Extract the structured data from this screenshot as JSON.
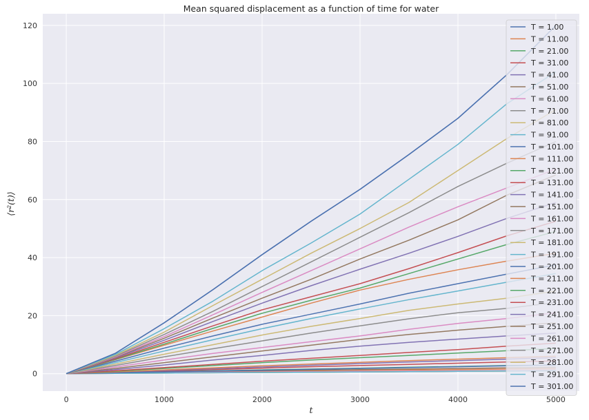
{
  "chart_data": {
    "type": "line",
    "title": "Mean squared displacement as a function of time for water",
    "xlabel": "t",
    "ylabel": "⟨r²(t)⟩",
    "xlim": [
      -240,
      5240
    ],
    "ylim": [
      -6,
      124
    ],
    "x_ticks": [
      0,
      1000,
      2000,
      3000,
      4000,
      5000
    ],
    "y_ticks": [
      0,
      20,
      40,
      60,
      80,
      100,
      120
    ],
    "grid": true,
    "legend_position": "upper-right",
    "series": [
      {
        "name": "T = 1.00",
        "color": "#4c72b0",
        "x": [
          0,
          500,
          1000,
          1500,
          2000,
          2500,
          3000,
          3500,
          4000,
          4500,
          5000
        ],
        "y": [
          0,
          7.0,
          17.5,
          29,
          41,
          52.5,
          63.5,
          75.5,
          88,
          103,
          120
        ]
      },
      {
        "name": "T = 11.00",
        "color": "#dd8452",
        "x": [
          0,
          500,
          1000,
          1500,
          2000,
          2500,
          3000,
          3500,
          4000,
          4500,
          5000
        ],
        "y": [
          0,
          0.2,
          0.4,
          0.6,
          0.8,
          1.0,
          1.2,
          1.3,
          1.4,
          1.6,
          1.7
        ]
      },
      {
        "name": "T = 21.00",
        "color": "#55a868",
        "x": [
          0,
          500,
          1000,
          1500,
          2000,
          2500,
          3000,
          3500,
          4000,
          4500,
          5000
        ],
        "y": [
          0,
          0.3,
          0.7,
          1.0,
          1.3,
          1.6,
          1.9,
          2.2,
          2.5,
          2.8,
          3.0
        ]
      },
      {
        "name": "T = 31.00",
        "color": "#c44e52",
        "x": [
          0,
          500,
          1000,
          1500,
          2000,
          2500,
          3000,
          3500,
          4000,
          4500,
          5000
        ],
        "y": [
          0,
          0.4,
          0.9,
          1.4,
          1.9,
          2.4,
          2.8,
          3.2,
          3.6,
          4.0,
          4.4
        ]
      },
      {
        "name": "T = 41.00",
        "color": "#8172b3",
        "x": [
          0,
          500,
          1000,
          1500,
          2000,
          2500,
          3000,
          3500,
          4000,
          4500,
          5000
        ],
        "y": [
          0,
          0.5,
          1.1,
          1.7,
          2.3,
          2.9,
          3.5,
          4.0,
          4.5,
          5.0,
          5.5
        ]
      },
      {
        "name": "T = 51.00",
        "color": "#937860",
        "x": [
          0,
          500,
          1000,
          1500,
          2000,
          2500,
          3000,
          3500,
          4000,
          4500,
          5000
        ],
        "y": [
          0,
          0.3,
          0.6,
          0.8,
          1.0,
          1.2,
          1.4,
          1.6,
          1.8,
          2.0,
          2.2
        ]
      },
      {
        "name": "T = 61.00",
        "color": "#da8bc3",
        "x": [
          0,
          500,
          1000,
          1500,
          2000,
          2500,
          3000,
          3500,
          4000,
          4500,
          5000
        ],
        "y": [
          0,
          0.2,
          0.4,
          0.5,
          0.6,
          0.7,
          0.8,
          0.9,
          1.0,
          1.1,
          1.2
        ]
      },
      {
        "name": "T = 71.00",
        "color": "#8c8c8c",
        "x": [
          0,
          500,
          1000,
          1500,
          2000,
          2500,
          3000,
          3500,
          4000,
          4500,
          5000
        ],
        "y": [
          0,
          0.1,
          0.2,
          0.3,
          0.4,
          0.5,
          0.6,
          0.7,
          0.8,
          0.9,
          1.0
        ]
      },
      {
        "name": "T = 81.00",
        "color": "#ccb974",
        "x": [
          0,
          500,
          1000,
          1500,
          2000,
          2500,
          3000,
          3500,
          4000,
          4500,
          5000
        ],
        "y": [
          0,
          0.1,
          0.2,
          0.3,
          0.4,
          0.5,
          0.6,
          0.7,
          0.8,
          0.9,
          1.0
        ]
      },
      {
        "name": "T = 91.00",
        "color": "#64b5cd",
        "x": [
          0,
          500,
          1000,
          1500,
          2000,
          2500,
          3000,
          3500,
          4000,
          4500,
          5000
        ],
        "y": [
          0,
          0.1,
          0.2,
          0.3,
          0.4,
          0.5,
          0.6,
          0.7,
          0.8,
          0.9,
          1.0
        ]
      },
      {
        "name": "T = 101.00",
        "color": "#4c72b0",
        "x": [
          0,
          500,
          1000,
          1500,
          2000,
          2500,
          3000,
          3500,
          4000,
          4500,
          5000
        ],
        "y": [
          0,
          0.3,
          0.6,
          0.9,
          1.2,
          1.5,
          1.8,
          2.1,
          2.4,
          2.7,
          3.0
        ]
      },
      {
        "name": "T = 111.00",
        "color": "#dd8452",
        "x": [
          0,
          500,
          1000,
          1500,
          2000,
          2500,
          3000,
          3500,
          4000,
          4500,
          5000
        ],
        "y": [
          0,
          0.6,
          1.3,
          2.0,
          2.7,
          3.3,
          3.9,
          4.5,
          5.0,
          5.5,
          6.0
        ]
      },
      {
        "name": "T = 121.00",
        "color": "#55a868",
        "x": [
          0,
          500,
          1000,
          1500,
          2000,
          2500,
          3000,
          3500,
          4000,
          4500,
          5000
        ],
        "y": [
          0,
          0.8,
          1.8,
          2.8,
          3.8,
          4.7,
          5.5,
          6.3,
          7.1,
          7.9,
          8.7
        ]
      },
      {
        "name": "T = 131.00",
        "color": "#c44e52",
        "x": [
          0,
          500,
          1000,
          1500,
          2000,
          2500,
          3000,
          3500,
          4000,
          4500,
          5000
        ],
        "y": [
          0,
          1.0,
          2.1,
          3.2,
          4.3,
          5.3,
          6.3,
          7.3,
          8.3,
          9.5,
          10.5
        ]
      },
      {
        "name": "T = 141.00",
        "color": "#8172b3",
        "x": [
          0,
          500,
          1000,
          1500,
          2000,
          2500,
          3000,
          3500,
          4000,
          4500,
          5000
        ],
        "y": [
          0,
          1.4,
          3.0,
          4.7,
          6.3,
          8.0,
          9.5,
          10.8,
          11.9,
          13.0,
          14.0
        ]
      },
      {
        "name": "T = 151.00",
        "color": "#937860",
        "x": [
          0,
          500,
          1000,
          1500,
          2000,
          2500,
          3000,
          3500,
          4000,
          4500,
          5000
        ],
        "y": [
          0,
          1.8,
          3.8,
          5.8,
          7.8,
          9.8,
          11.8,
          13.5,
          15.0,
          16.3,
          17.5
        ]
      },
      {
        "name": "T = 161.00",
        "color": "#da8bc3",
        "x": [
          0,
          500,
          1000,
          1500,
          2000,
          2500,
          3000,
          3500,
          4000,
          4500,
          5000
        ],
        "y": [
          0,
          2.3,
          4.7,
          7.0,
          9.0,
          11.0,
          13.0,
          15.3,
          17.3,
          19.0,
          21.0
        ]
      },
      {
        "name": "T = 171.00",
        "color": "#8c8c8c",
        "x": [
          0,
          500,
          1000,
          1500,
          2000,
          2500,
          3000,
          3500,
          4000,
          4500,
          5000
        ],
        "y": [
          0,
          2.8,
          5.8,
          8.6,
          11.3,
          14.0,
          16.5,
          18.9,
          21.0,
          22.5,
          24.5
        ]
      },
      {
        "name": "T = 181.00",
        "color": "#ccb974",
        "x": [
          0,
          500,
          1000,
          1500,
          2000,
          2500,
          3000,
          3500,
          4000,
          4500,
          5000
        ],
        "y": [
          0,
          3.3,
          6.7,
          10.0,
          13.3,
          16.3,
          19.0,
          21.8,
          24.0,
          26.0,
          28.5
        ]
      },
      {
        "name": "T = 191.00",
        "color": "#64b5cd",
        "x": [
          0,
          500,
          1000,
          1500,
          2000,
          2500,
          3000,
          3500,
          4000,
          4500,
          5000
        ],
        "y": [
          0,
          3.8,
          7.8,
          11.7,
          15.5,
          19.0,
          22.3,
          25.5,
          28.5,
          31.5,
          34.5
        ]
      },
      {
        "name": "T = 201.00",
        "color": "#4c72b0",
        "x": [
          0,
          500,
          1000,
          1500,
          2000,
          2500,
          3000,
          3500,
          4000,
          4500,
          5000
        ],
        "y": [
          0,
          4.3,
          8.8,
          13.0,
          17.0,
          20.5,
          24.0,
          27.7,
          31.0,
          34.3,
          37.5
        ]
      },
      {
        "name": "T = 211.00",
        "color": "#dd8452",
        "x": [
          0,
          500,
          1000,
          1500,
          2000,
          2500,
          3000,
          3500,
          4000,
          4500,
          5000
        ],
        "y": [
          0,
          4.8,
          9.8,
          14.7,
          19.5,
          24.3,
          28.8,
          32.5,
          35.8,
          38.8,
          41.5
        ]
      },
      {
        "name": "T = 221.00",
        "color": "#55a868",
        "x": [
          0,
          500,
          1000,
          1500,
          2000,
          2500,
          3000,
          3500,
          4000,
          4500,
          5000
        ],
        "y": [
          0,
          4.9,
          10.2,
          15.6,
          20.8,
          25.3,
          29.5,
          34.5,
          39.5,
          44.5,
          49.0
        ]
      },
      {
        "name": "T = 231.00",
        "color": "#c44e52",
        "x": [
          0,
          500,
          1000,
          1500,
          2000,
          2500,
          3000,
          3500,
          4000,
          4500,
          5000
        ],
        "y": [
          0,
          5.1,
          10.8,
          16.5,
          22.0,
          26.5,
          31.0,
          36.2,
          41.7,
          47.5,
          52.5
        ]
      },
      {
        "name": "T = 241.00",
        "color": "#8172b3",
        "x": [
          0,
          500,
          1000,
          1500,
          2000,
          2500,
          3000,
          3500,
          4000,
          4500,
          5000
        ],
        "y": [
          0,
          5.4,
          11.5,
          18.0,
          24.3,
          30.3,
          36.0,
          41.5,
          47.3,
          53.5,
          59.0
        ]
      },
      {
        "name": "T = 251.00",
        "color": "#937860",
        "x": [
          0,
          500,
          1000,
          1500,
          2000,
          2500,
          3000,
          3500,
          4000,
          4500,
          5000
        ],
        "y": [
          0,
          5.6,
          12.2,
          19.2,
          26.0,
          32.5,
          39.5,
          46.0,
          53.0,
          61.5,
          68.5
        ]
      },
      {
        "name": "T = 261.00",
        "color": "#da8bc3",
        "x": [
          0,
          500,
          1000,
          1500,
          2000,
          2500,
          3000,
          3500,
          4000,
          4500,
          5000
        ],
        "y": [
          0,
          5.8,
          12.8,
          20.3,
          28.0,
          35.5,
          43.0,
          50.5,
          57.5,
          64.0,
          70.5
        ]
      },
      {
        "name": "T = 271.00",
        "color": "#8c8c8c",
        "x": [
          0,
          500,
          1000,
          1500,
          2000,
          2500,
          3000,
          3500,
          4000,
          4500,
          5000
        ],
        "y": [
          0,
          6.0,
          13.5,
          21.5,
          30.0,
          38.5,
          47.0,
          55.5,
          64.5,
          72.5,
          80.0
        ]
      },
      {
        "name": "T = 281.00",
        "color": "#ccb974",
        "x": [
          0,
          500,
          1000,
          1500,
          2000,
          2500,
          3000,
          3500,
          4000,
          4500,
          5000
        ],
        "y": [
          0,
          6.3,
          14.3,
          23.5,
          32.5,
          41.5,
          50.0,
          59.0,
          70.0,
          81.0,
          91.0
        ]
      },
      {
        "name": "T = 291.00",
        "color": "#64b5cd",
        "x": [
          0,
          500,
          1000,
          1500,
          2000,
          2500,
          3000,
          3500,
          4000,
          4500,
          5000
        ],
        "y": [
          0,
          6.6,
          15.5,
          25.0,
          35.5,
          45.0,
          55.0,
          67.0,
          79.0,
          93.0,
          104.0
        ]
      },
      {
        "name": "T = 301.00",
        "color": "#4c72b0",
        "x": [
          0,
          500,
          1000,
          1500,
          2000,
          2500,
          3000,
          3500,
          4000,
          4500,
          5000
        ],
        "y": [
          0,
          7.0,
          17.5,
          29.0,
          41.0,
          52.5,
          63.5,
          75.5,
          88.0,
          103.0,
          120.0
        ]
      }
    ]
  }
}
